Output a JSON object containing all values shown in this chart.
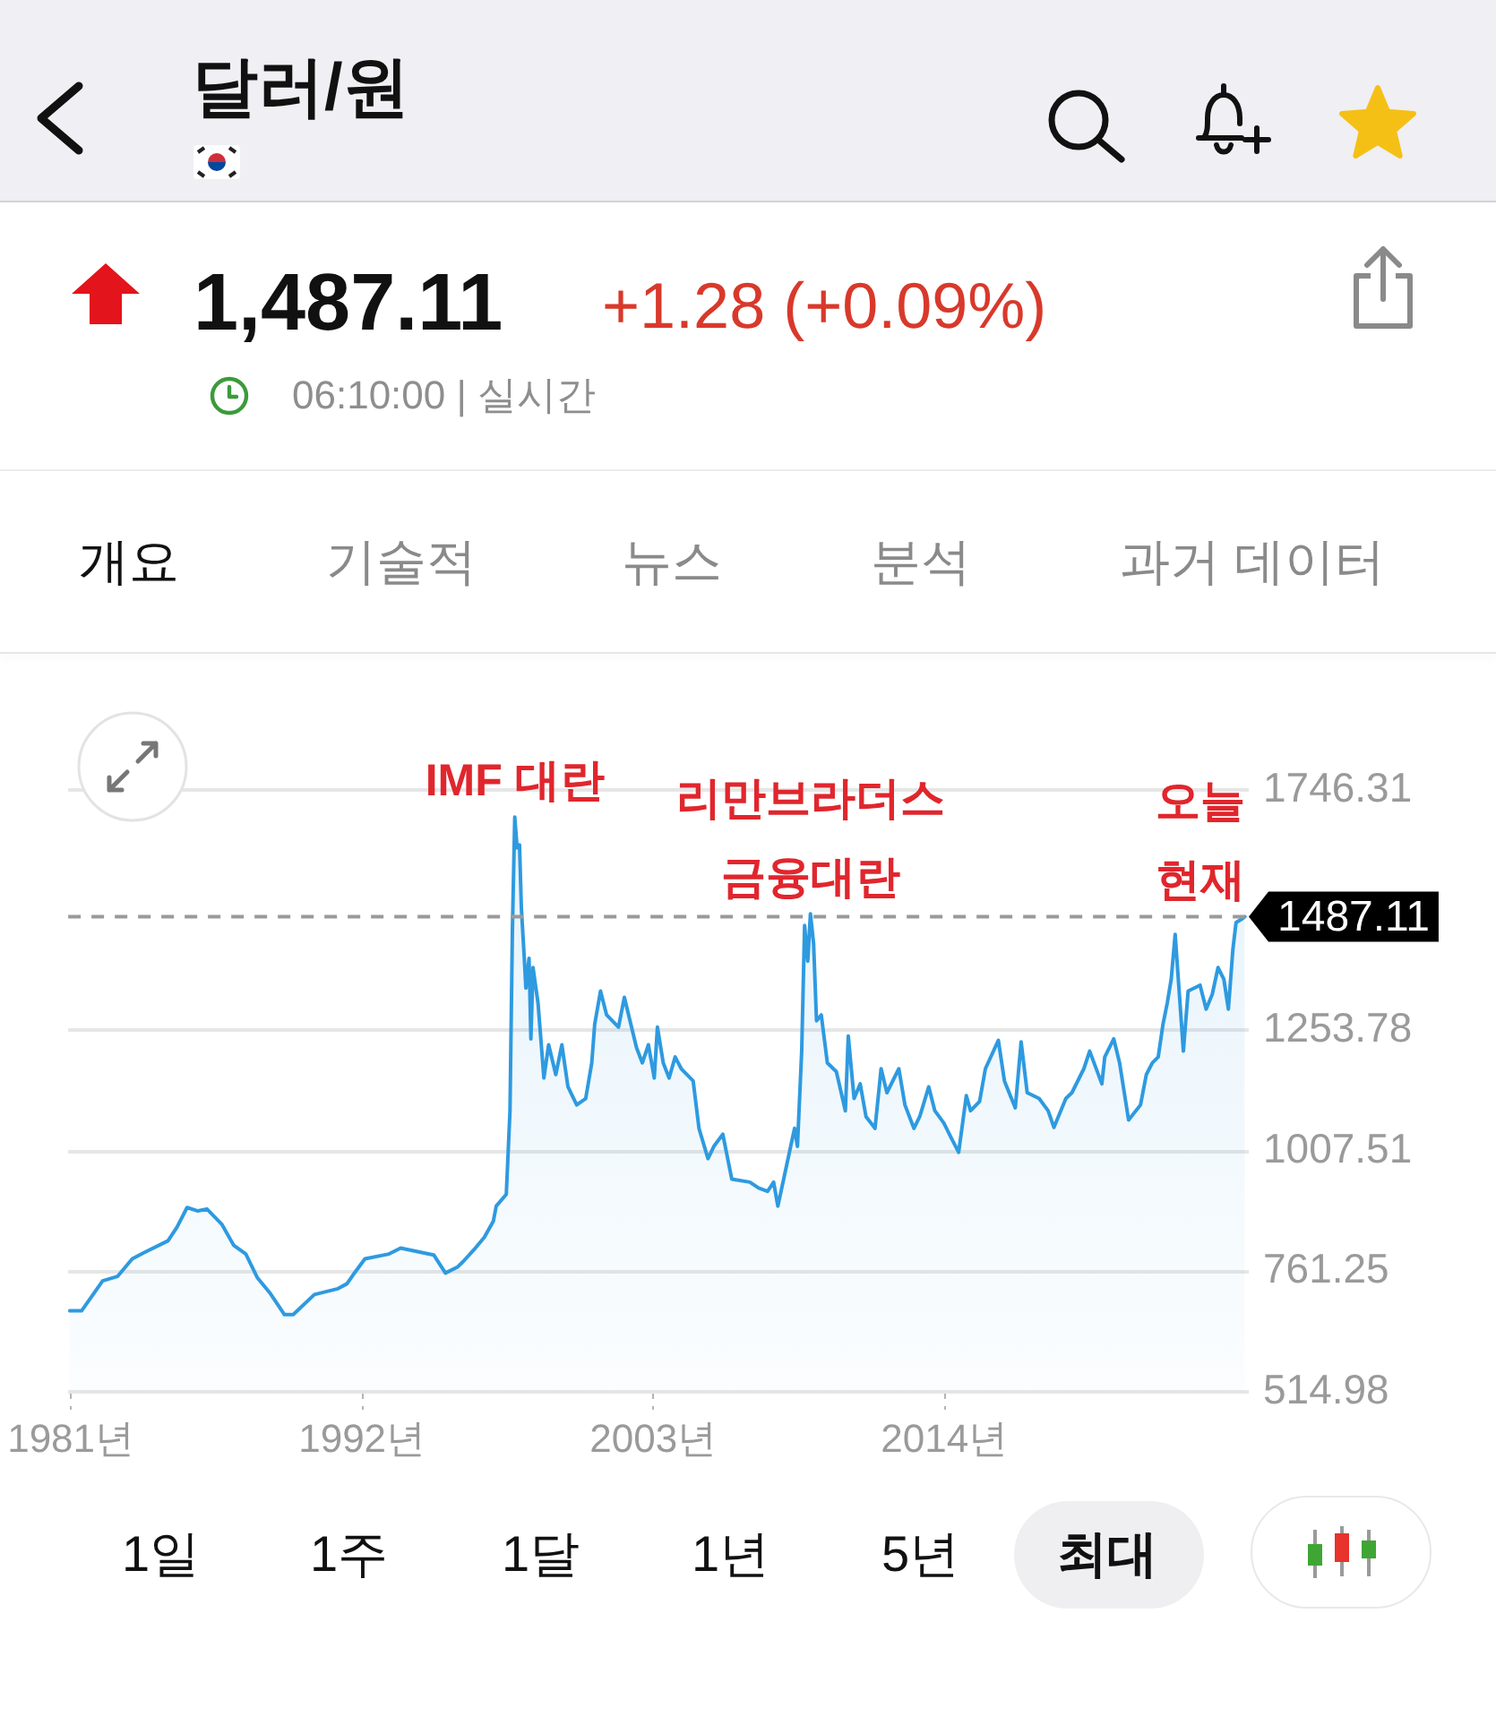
{
  "chart_data": {
    "type": "area",
    "title": "달러/원",
    "x": [
      1980.95,
      1981.41,
      1982.2,
      1982.76,
      1983.32,
      1983.77,
      1984.67,
      1985.01,
      1985.39,
      1985.8,
      1986.14,
      1986.7,
      1987.15,
      1987.61,
      1988.05,
      1988.51,
      1989.07,
      1989.4,
      1990.2,
      1991.09,
      1991.43,
      1991.66,
      1992.11,
      1993.02,
      1993.46,
      1994.71,
      1995.15,
      1995.6,
      1995.83,
      1996.28,
      1996.62,
      1996.96,
      1997.07,
      1997.45,
      1997.59,
      1997.68,
      1997.77,
      1997.86,
      1997.95,
      1998.02,
      1998.13,
      1998.19,
      1998.31,
      1998.38,
      1998.46,
      1998.65,
      1998.87,
      1999.05,
      1999.32,
      1999.55,
      1999.78,
      2000.11,
      2000.45,
      2000.68,
      2000.79,
      2001.01,
      2001.24,
      2001.69,
      2001.91,
      2002.37,
      2002.59,
      2002.82,
      2003.04,
      2003.16,
      2003.38,
      2003.6,
      2003.83,
      2004.06,
      2004.51,
      2004.73,
      2005.07,
      2005.29,
      2005.63,
      2005.97,
      2006.65,
      2006.98,
      2007.32,
      2007.55,
      2007.71,
      2008.0,
      2008.34,
      2008.45,
      2008.61,
      2008.72,
      2008.84,
      2008.94,
      2009.06,
      2009.17,
      2009.35,
      2009.58,
      2009.92,
      2010.26,
      2010.37,
      2010.59,
      2010.82,
      2011.04,
      2011.38,
      2011.61,
      2011.83,
      2012.28,
      2012.51,
      2012.85,
      2013.07,
      2013.41,
      2013.64,
      2013.98,
      2014.31,
      2014.54,
      2014.83,
      2014.99,
      2015.33,
      2015.55,
      2016.04,
      2016.27,
      2016.68,
      2016.9,
      2017.13,
      2017.58,
      2017.92,
      2018.14,
      2018.59,
      2018.82,
      2019.27,
      2019.49,
      2019.95,
      2020.06,
      2020.4,
      2020.62,
      2020.96,
      2021.41,
      2021.63,
      2021.86,
      2022.08,
      2022.26,
      2022.42,
      2022.57,
      2022.72,
      2022.87,
      2023.03,
      2023.21,
      2023.66,
      2023.89,
      2024.12,
      2024.34,
      2024.56,
      2024.73,
      2024.9,
      2025.02,
      2025.2,
      2025.35
    ],
    "values": [
      681,
      681,
      742,
      751,
      787,
      800,
      824,
      852,
      892,
      885,
      889,
      858,
      815,
      797,
      748,
      718,
      673,
      673,
      714,
      726,
      736,
      754,
      787,
      797,
      809,
      795,
      758,
      770,
      782,
      809,
      831,
      864,
      895,
      919,
      1090,
      1457,
      1691,
      1628,
      1634,
      1505,
      1402,
      1341,
      1402,
      1237,
      1383,
      1310,
      1157,
      1225,
      1164,
      1225,
      1139,
      1102,
      1115,
      1188,
      1267,
      1335,
      1286,
      1261,
      1322,
      1219,
      1188,
      1225,
      1157,
      1261,
      1188,
      1157,
      1200,
      1176,
      1151,
      1054,
      992,
      1017,
      1042,
      950,
      944,
      932,
      925,
      944,
      895,
      968,
      1054,
      1017,
      1212,
      1469,
      1396,
      1493,
      1432,
      1274,
      1286,
      1188,
      1170,
      1090,
      1243,
      1115,
      1145,
      1078,
      1054,
      1176,
      1127,
      1176,
      1102,
      1054,
      1078,
      1139,
      1090,
      1065,
      1029,
      1005,
      1121,
      1090,
      1109,
      1176,
      1234,
      1151,
      1096,
      1231,
      1127,
      1115,
      1090,
      1056,
      1115,
      1127,
      1176,
      1212,
      1145,
      1200,
      1237,
      1188,
      1071,
      1102,
      1164,
      1188,
      1200,
      1267,
      1310,
      1359,
      1451,
      1335,
      1212,
      1335,
      1347,
      1298,
      1328,
      1383,
      1359,
      1298,
      1420,
      1475,
      1481,
      1487
    ],
    "color": "#2e9ae0",
    "xlim": [
      1980.9,
      2025.5
    ],
    "xticks": [
      {
        "value": 1981,
        "label": "1981년"
      },
      {
        "value": 1992,
        "label": "1992년"
      },
      {
        "value": 2003,
        "label": "2003년"
      },
      {
        "value": 2014,
        "label": "2014년"
      }
    ],
    "ylim": [
      514.98,
      1746.31
    ],
    "yticks": [
      514.98,
      761.25,
      1007.51,
      1253.78,
      1746.31
    ],
    "grid": "y",
    "marker": "none",
    "line_style": "solid",
    "ref_lines": [
      {
        "axis": "y",
        "value": 1487.11,
        "label": "1487.11",
        "color": "#9a9a9a",
        "line_style": "dashed"
      }
    ],
    "annotations": [
      "1,487.11",
      "+1.28 (+0.09%)",
      "06:10:00 | 실시간",
      "개요",
      "기술적",
      "뉴스",
      "분석",
      "과거 데이터",
      {
        "text": "IMF 대란",
        "x": 1997.77,
        "y": 1691
      },
      {
        "text": "리만브라더스\n금융대란",
        "x": 2008.94,
        "y": 1493
      },
      {
        "text": "오늘\n현재",
        "x": 2025.35,
        "y": 1487
      },
      "1일",
      "1주",
      "1달",
      "1년",
      "5년",
      "최대"
    ]
  }
}
